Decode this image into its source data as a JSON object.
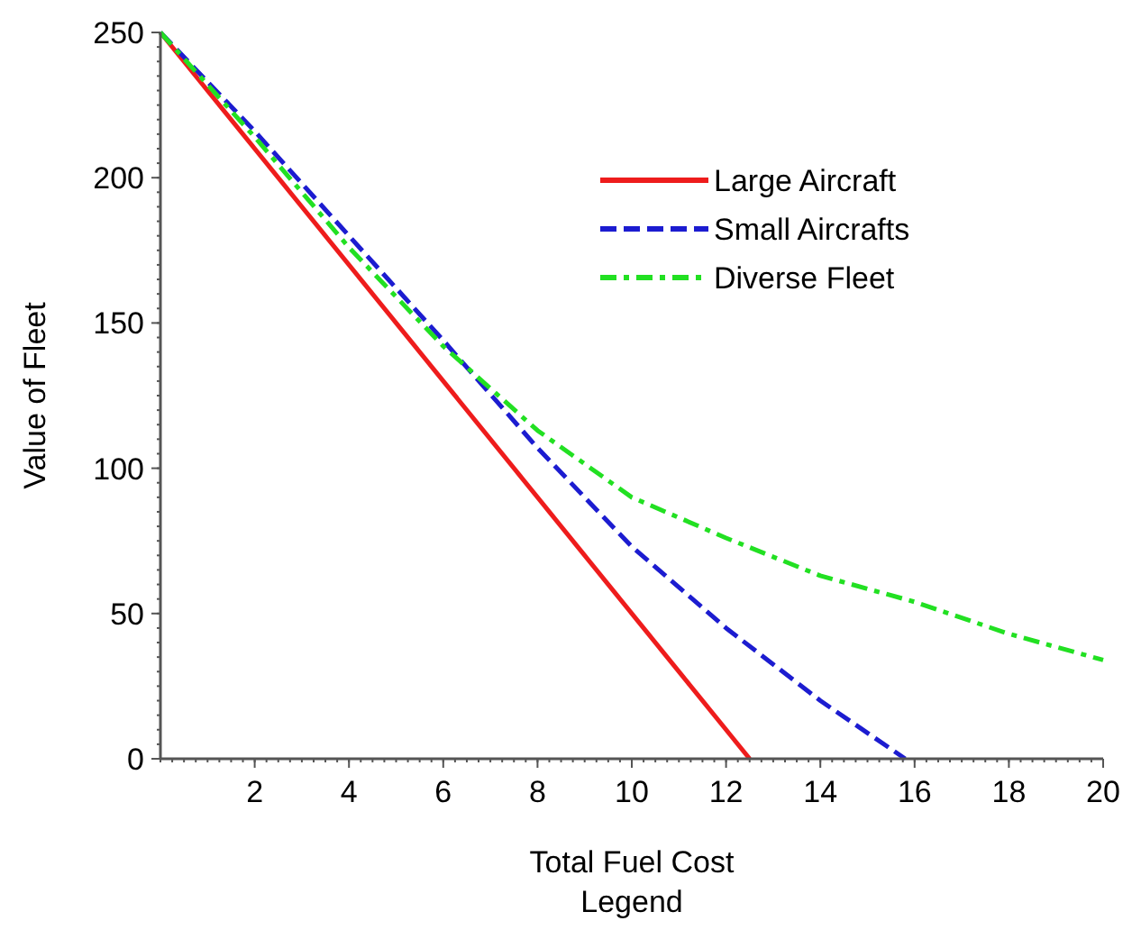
{
  "chart_data": {
    "type": "line",
    "xlabel": "Total Fuel Cost",
    "ylabel": "Value of Fleet",
    "annotations": [
      "Legend"
    ],
    "xlim": [
      0,
      20
    ],
    "xticks": [
      2,
      4,
      6,
      8,
      10,
      12,
      14,
      16,
      18,
      20
    ],
    "ylim": [
      0,
      250
    ],
    "yticks": [
      0,
      50,
      100,
      150,
      200,
      250
    ],
    "grid": false,
    "legend": "top right",
    "series": [
      {
        "name": "Large Aircraft",
        "color": "#ee1c1c",
        "line_style": "solid",
        "x": [
          0,
          12.5
        ],
        "values": [
          250,
          0
        ]
      },
      {
        "name": "Small Aircrafts",
        "color": "#1c1cd0",
        "line_style": "dashed",
        "x": [
          0,
          2,
          4,
          6,
          8,
          10,
          12,
          14,
          15.8
        ],
        "values": [
          250,
          216,
          180,
          144,
          107,
          73,
          45,
          20,
          0
        ]
      },
      {
        "name": "Diverse Fleet",
        "color": "#22e022",
        "line_style": "dashdot",
        "x": [
          0,
          2,
          4,
          6,
          8,
          10,
          12,
          14,
          16,
          18,
          20
        ],
        "values": [
          250,
          214,
          176,
          142,
          113,
          90,
          76,
          63,
          54,
          43,
          34
        ]
      }
    ]
  }
}
